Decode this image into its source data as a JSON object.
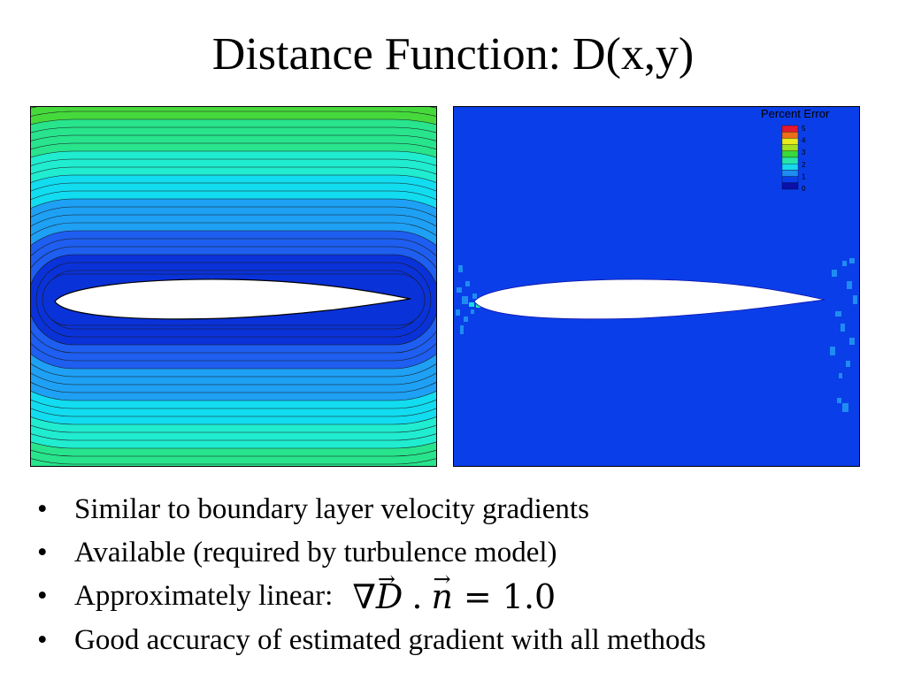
{
  "slide": {
    "title": "Distance Function: D(x,y)"
  },
  "figures": {
    "left_plot": {
      "colors": [
        "#0a32d9",
        "#1e5ef0",
        "#1ea0f5",
        "#12dcf0",
        "#20ecd0",
        "#28e48c",
        "#46d93c",
        "#76db2a",
        "#a6e222",
        "#d6ea1c"
      ]
    },
    "right_plot": {
      "background_color": "#0a3ee8",
      "legend": {
        "title": "Percent Error",
        "ticks": [
          "5",
          "4",
          "3",
          "2",
          "1",
          "0"
        ],
        "colors": [
          "#e5182e",
          "#ee6d16",
          "#eaea1c",
          "#a2e11f",
          "#37d93b",
          "#27e5a8",
          "#16d9ec",
          "#1f8cf2",
          "#0a3ee8",
          "#0a10a8"
        ]
      }
    }
  },
  "bullets": [
    {
      "text": "Similar to boundary layer velocity gradients"
    },
    {
      "text": "Available (required by turbulence model)"
    },
    {
      "text": "Approximately linear:"
    },
    {
      "text": "Good accuracy of estimated gradient with all methods"
    }
  ],
  "equation": {
    "nabla": "∇",
    "d": "D",
    "dot": ".",
    "n": "n",
    "arrow": "→",
    "equals": "=",
    "value": "1.0"
  }
}
